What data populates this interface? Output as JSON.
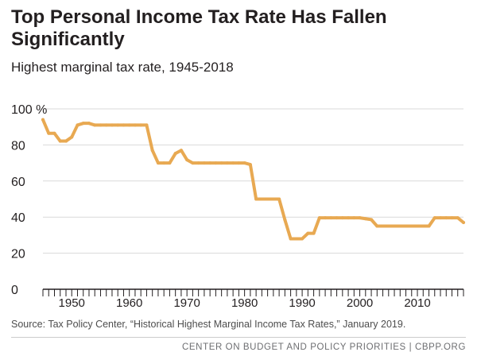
{
  "header": {
    "title": "Top Personal Income Tax Rate Has Fallen Significantly",
    "subtitle": "Highest marginal tax rate, 1945-2018"
  },
  "source": "Source: Tax Policy Center, “Historical Highest Marginal Income Tax Rates,” January 2019.",
  "footer": "CENTER ON BUDGET AND POLICY PRIORITIES | CBPP.ORG",
  "colors": {
    "line": "#e8a952",
    "grid": "#d9d9d9",
    "axis": "#231f20"
  },
  "chart_data": {
    "type": "line",
    "title": "Top Personal Income Tax Rate Has Fallen Significantly",
    "subtitle": "Highest marginal tax rate, 1945-2018",
    "xlabel": "",
    "ylabel": "",
    "xlim": [
      1945,
      2018
    ],
    "ylim": [
      0,
      100
    ],
    "y_ticks": [
      0,
      20,
      40,
      60,
      80,
      100
    ],
    "y_tick_labels": [
      "0",
      "20",
      "40",
      "60",
      "80",
      "100 %"
    ],
    "x_ticks": [
      1950,
      1960,
      1970,
      1980,
      1990,
      2000,
      2010
    ],
    "x_tick_labels": [
      "1950",
      "1960",
      "1970",
      "1980",
      "1990",
      "2000",
      "2010"
    ],
    "grid": true,
    "series": [
      {
        "x": [
          1945,
          1946,
          1947,
          1948,
          1949,
          1950,
          1951,
          1952,
          1953,
          1954,
          1955,
          1956,
          1957,
          1958,
          1959,
          1960,
          1961,
          1962,
          1963,
          1964,
          1965,
          1966,
          1967,
          1968,
          1969,
          1970,
          1971,
          1972,
          1973,
          1974,
          1975,
          1976,
          1977,
          1978,
          1979,
          1980,
          1981,
          1982,
          1983,
          1984,
          1985,
          1986,
          1987,
          1988,
          1989,
          1990,
          1991,
          1992,
          1993,
          1994,
          1995,
          1996,
          1997,
          1998,
          1999,
          2000,
          2001,
          2002,
          2003,
          2004,
          2005,
          2006,
          2007,
          2008,
          2009,
          2010,
          2011,
          2012,
          2013,
          2014,
          2015,
          2016,
          2017,
          2018
        ],
        "y": [
          94,
          86.45,
          86.45,
          82.13,
          82.13,
          84.36,
          91,
          92,
          92,
          91,
          91,
          91,
          91,
          91,
          91,
          91,
          91,
          91,
          91,
          77,
          70,
          70,
          70,
          75.25,
          77,
          71.75,
          70,
          70,
          70,
          70,
          70,
          70,
          70,
          70,
          70,
          70,
          69.125,
          50,
          50,
          50,
          50,
          50,
          38.5,
          28,
          28,
          28,
          31,
          31,
          39.6,
          39.6,
          39.6,
          39.6,
          39.6,
          39.6,
          39.6,
          39.6,
          39.1,
          38.6,
          35,
          35,
          35,
          35,
          35,
          35,
          35,
          35,
          35,
          35,
          39.6,
          39.6,
          39.6,
          39.6,
          39.6,
          37
        ]
      }
    ]
  }
}
